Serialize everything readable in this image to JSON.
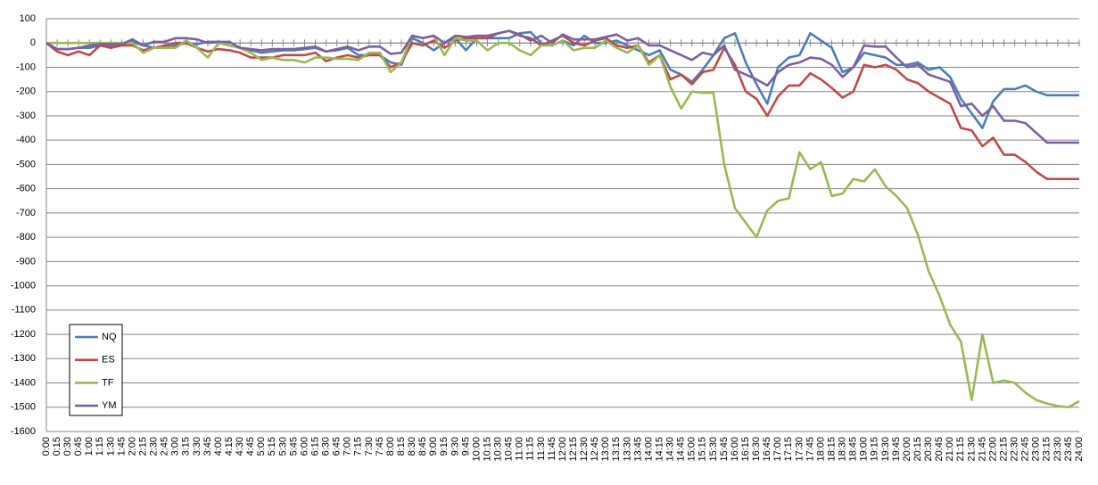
{
  "chart_data": {
    "type": "line",
    "categories": [
      "0:00",
      "0:15",
      "0:30",
      "0:45",
      "1:00",
      "1:15",
      "1:30",
      "1:45",
      "2:00",
      "2:15",
      "2:30",
      "2:45",
      "3:00",
      "3:15",
      "3:30",
      "3:45",
      "4:00",
      "4:15",
      "4:30",
      "4:45",
      "5:00",
      "5:15",
      "5:30",
      "5:45",
      "6:00",
      "6:15",
      "6:30",
      "6:45",
      "7:00",
      "7:15",
      "7:30",
      "7:45",
      "8:00",
      "8:15",
      "8:30",
      "8:45",
      "9:00",
      "9:15",
      "9:30",
      "9:45",
      "10:00",
      "10:15",
      "10:30",
      "10:45",
      "11:00",
      "11:15",
      "11:30",
      "11:45",
      "12:00",
      "12:15",
      "12:30",
      "12:45",
      "13:00",
      "13:15",
      "13:30",
      "13:45",
      "14:00",
      "14:15",
      "14:30",
      "14:45",
      "15:00",
      "15:15",
      "15:30",
      "15:45",
      "16:00",
      "16:15",
      "16:30",
      "16:45",
      "17:00",
      "17:15",
      "17:30",
      "17:45",
      "18:00",
      "18:15",
      "18:30",
      "18:45",
      "19:00",
      "19:15",
      "19:30",
      "19:45",
      "20:00",
      "20:15",
      "20:30",
      "20:45",
      "21:00",
      "21:15",
      "21:30",
      "21:45",
      "22:00",
      "22:15",
      "22:30",
      "22:45",
      "23:00",
      "23:15",
      "23:30",
      "23:45",
      "24:00"
    ],
    "series": [
      {
        "name": "NQ",
        "color": "#4a7ebb",
        "values": [
          0,
          -25,
          -25,
          -20,
          -20,
          -10,
          -10,
          -5,
          5,
          -10,
          -20,
          -20,
          -10,
          0,
          -5,
          5,
          5,
          -10,
          -20,
          -30,
          -40,
          -35,
          -30,
          -30,
          -25,
          -20,
          -35,
          -30,
          -20,
          -50,
          -50,
          -50,
          -80,
          -90,
          20,
          0,
          -30,
          0,
          20,
          -30,
          20,
          20,
          20,
          20,
          40,
          45,
          0,
          -10,
          10,
          -10,
          30,
          0,
          0,
          10,
          -10,
          -30,
          -50,
          -30,
          -110,
          -130,
          -160,
          -110,
          -50,
          20,
          40,
          -80,
          -170,
          -250,
          -100,
          -60,
          -50,
          40,
          10,
          -20,
          -120,
          -100,
          -40,
          -50,
          -60,
          -90,
          -90,
          -80,
          -110,
          -100,
          -140,
          -230,
          -290,
          -350,
          -240,
          -190,
          -190,
          -175,
          -200,
          -215,
          -215,
          -215,
          -215
        ]
      },
      {
        "name": "ES",
        "color": "#be4b48",
        "values": [
          0,
          -35,
          -50,
          -35,
          -50,
          -10,
          -20,
          -10,
          -10,
          -30,
          -20,
          -10,
          0,
          0,
          -20,
          -35,
          -25,
          -30,
          -40,
          -60,
          -60,
          -60,
          -50,
          -50,
          -50,
          -40,
          -75,
          -60,
          -50,
          -60,
          -50,
          -50,
          -100,
          -80,
          0,
          -10,
          10,
          -20,
          10,
          20,
          20,
          20,
          40,
          50,
          30,
          20,
          -10,
          10,
          30,
          0,
          -10,
          10,
          20,
          -10,
          -20,
          -10,
          -80,
          -50,
          -150,
          -130,
          -170,
          -120,
          -110,
          -20,
          -90,
          -200,
          -230,
          -300,
          -220,
          -175,
          -175,
          -125,
          -150,
          -185,
          -225,
          -200,
          -90,
          -100,
          -90,
          -110,
          -150,
          -165,
          -200,
          -225,
          -250,
          -350,
          -360,
          -425,
          -390,
          -460,
          -460,
          -490,
          -530,
          -560,
          -560,
          -560,
          -560
        ]
      },
      {
        "name": "TF",
        "color": "#98b954",
        "values": [
          0,
          0,
          0,
          0,
          0,
          0,
          0,
          0,
          0,
          -40,
          -20,
          -20,
          -20,
          10,
          -20,
          -60,
          0,
          -10,
          -20,
          -40,
          -70,
          -60,
          -70,
          -70,
          -80,
          -60,
          -60,
          -65,
          -65,
          -70,
          -40,
          -40,
          -120,
          -80,
          30,
          20,
          30,
          -50,
          20,
          10,
          10,
          -30,
          0,
          0,
          -30,
          -50,
          -10,
          -10,
          10,
          -30,
          -20,
          -20,
          10,
          -20,
          -40,
          -10,
          -90,
          -50,
          -180,
          -270,
          -200,
          -205,
          -205,
          -500,
          -680,
          -740,
          -800,
          -690,
          -650,
          -640,
          -450,
          -520,
          -490,
          -630,
          -620,
          -560,
          -570,
          -520,
          -590,
          -630,
          -680,
          -790,
          -940,
          -1040,
          -1160,
          -1230,
          -1470,
          -1200,
          -1400,
          -1390,
          -1400,
          -1440,
          -1470,
          -1485,
          -1495,
          -1500,
          -1475
        ]
      },
      {
        "name": "YM",
        "color": "#7d60a0",
        "values": [
          0,
          -25,
          -25,
          -20,
          -10,
          -5,
          -5,
          -5,
          15,
          -10,
          5,
          5,
          20,
          20,
          15,
          0,
          5,
          5,
          -20,
          -25,
          -30,
          -25,
          -25,
          -25,
          -20,
          -15,
          -35,
          -25,
          -15,
          -30,
          -15,
          -15,
          -45,
          -40,
          30,
          20,
          30,
          0,
          30,
          25,
          30,
          30,
          40,
          50,
          35,
          10,
          30,
          0,
          35,
          15,
          15,
          15,
          25,
          35,
          10,
          20,
          -10,
          -10,
          -30,
          -50,
          -70,
          -40,
          -50,
          -10,
          -110,
          -130,
          -150,
          -175,
          -120,
          -90,
          -80,
          -60,
          -65,
          -90,
          -140,
          -100,
          -10,
          -15,
          -15,
          -60,
          -100,
          -90,
          -130,
          -145,
          -160,
          -260,
          -250,
          -300,
          -260,
          -320,
          -320,
          -330,
          -370,
          -410,
          -410,
          -410,
          -410
        ]
      }
    ],
    "ylim": [
      -1600,
      100
    ],
    "yticks": [
      100,
      0,
      -100,
      -200,
      -300,
      -400,
      -500,
      -600,
      -700,
      -800,
      -900,
      -1000,
      -1100,
      -1200,
      -1300,
      -1400,
      -1500,
      -1600
    ],
    "grid": true
  }
}
